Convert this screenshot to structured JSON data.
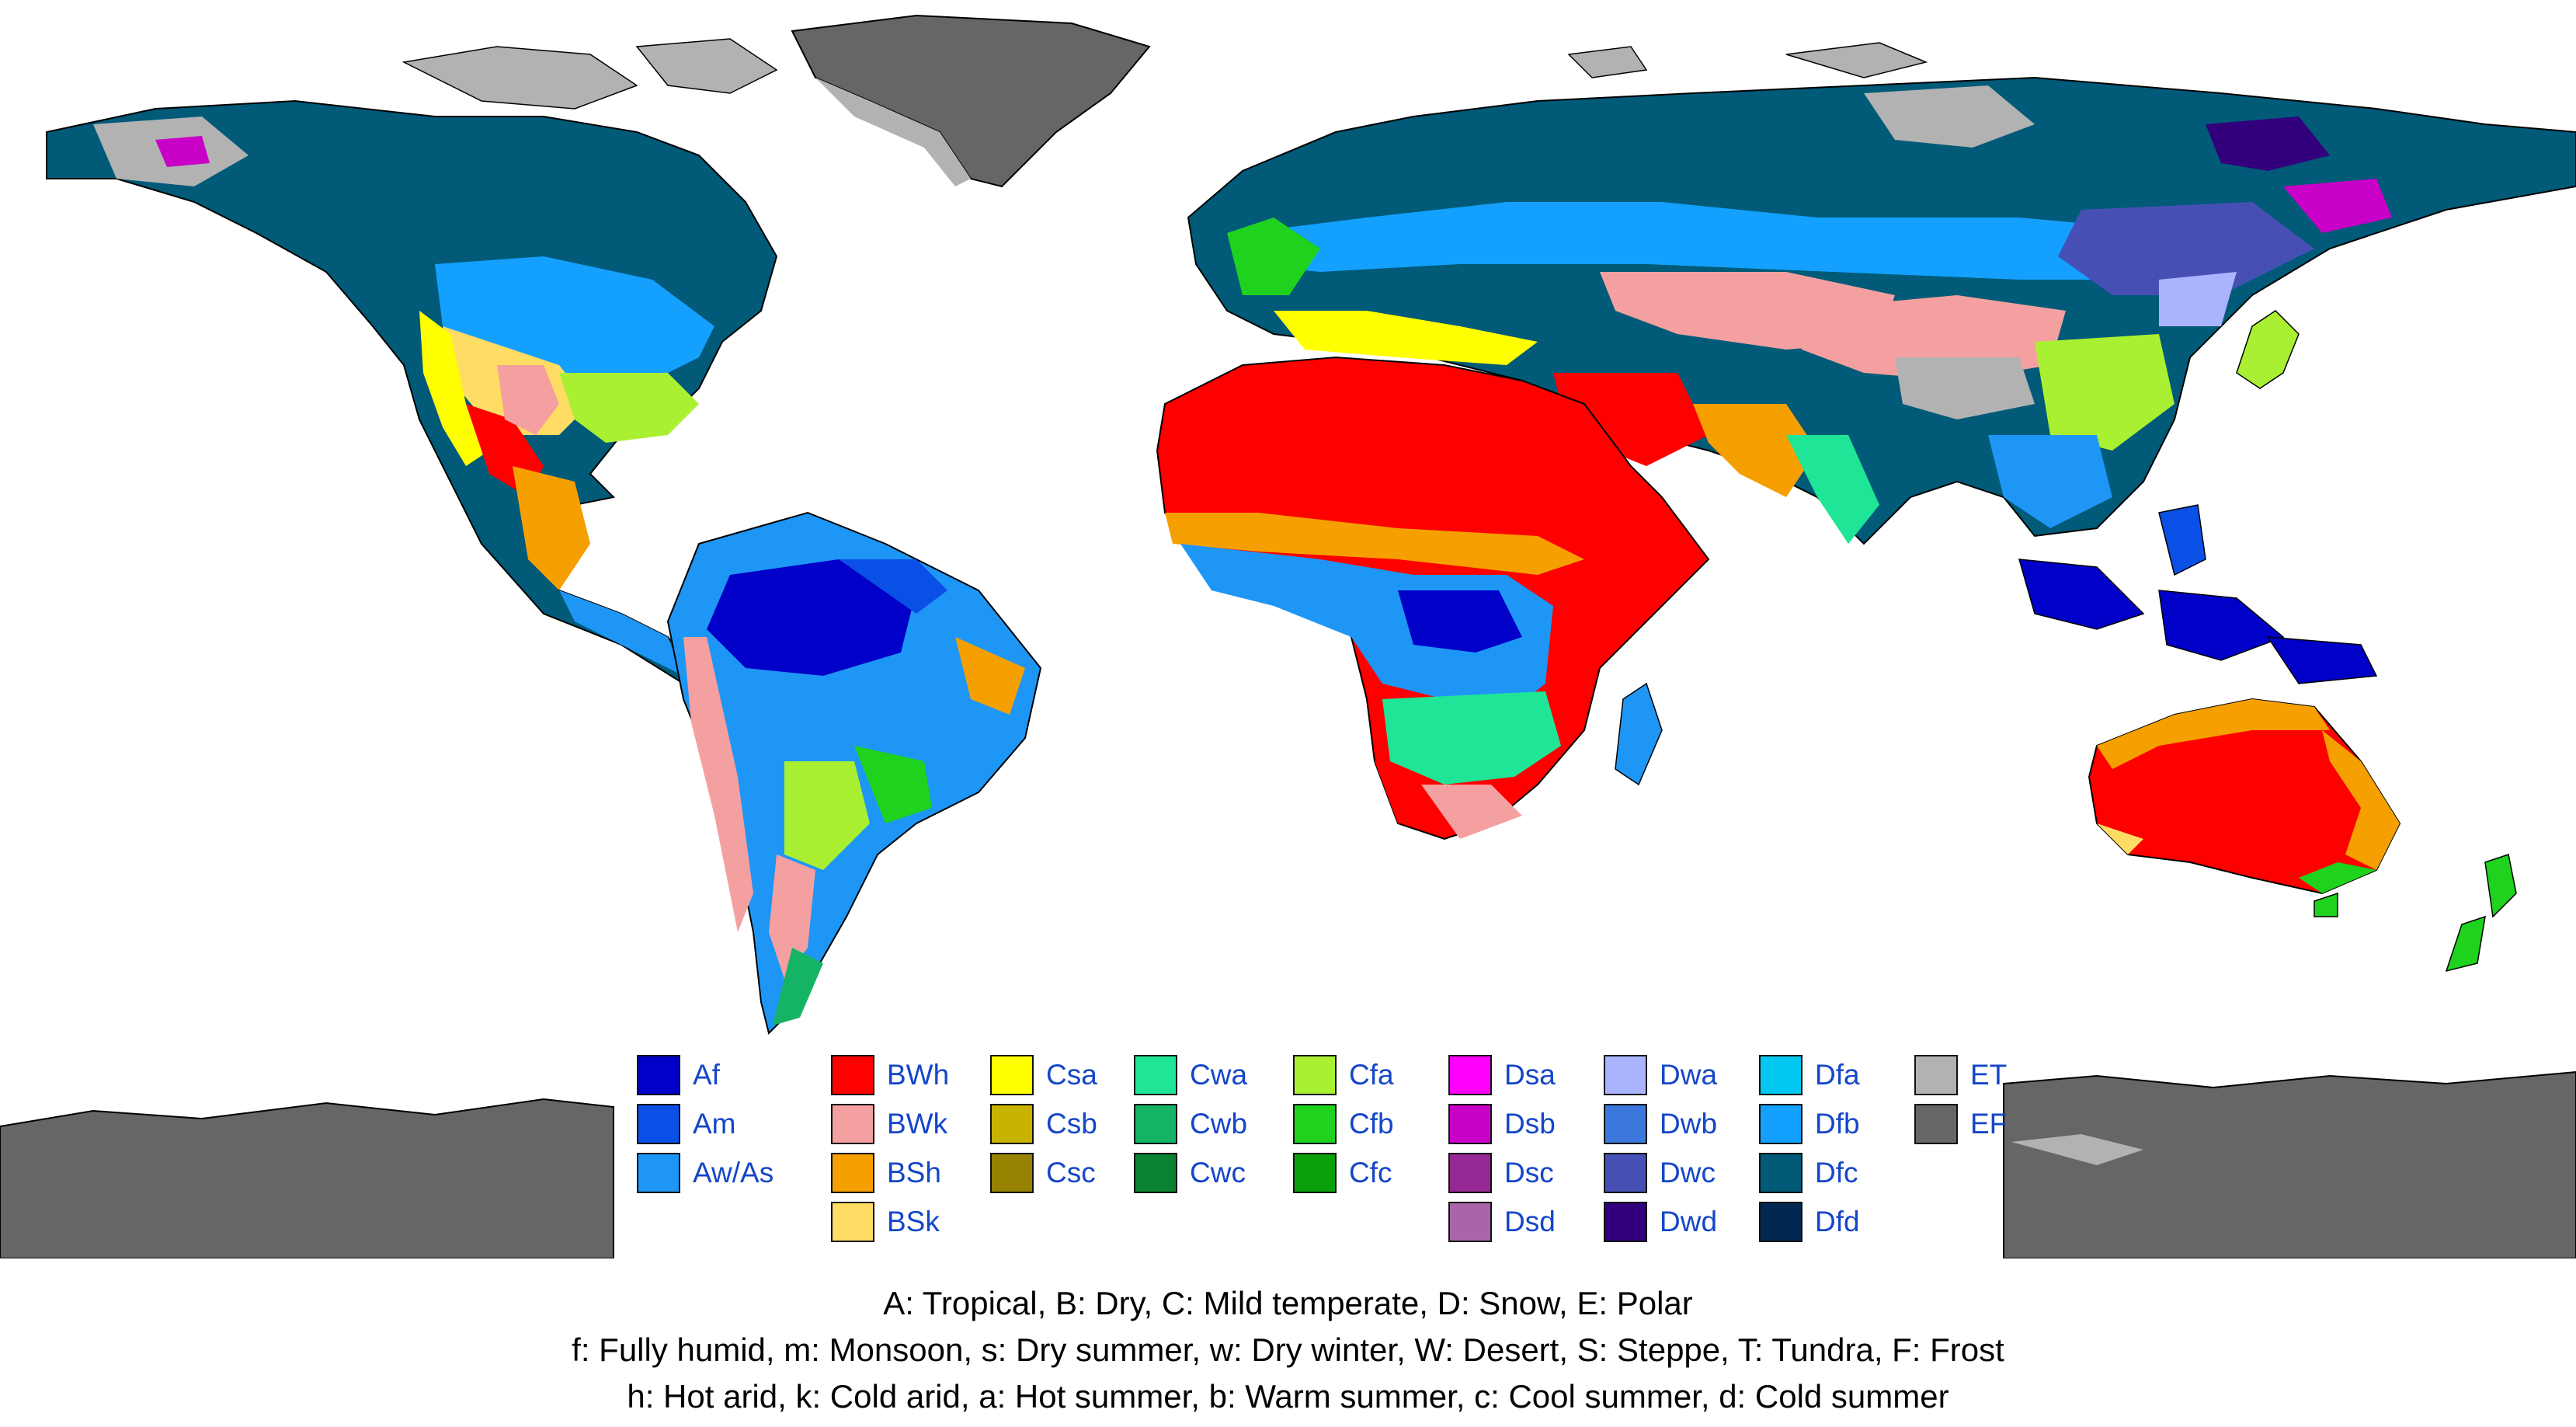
{
  "legend": {
    "columns": [
      [
        {
          "code": "Af",
          "color": "#0000c8"
        },
        {
          "code": "Am",
          "color": "#0a50e6"
        },
        {
          "code": "Aw/As",
          "color": "#1e96f5"
        }
      ],
      [
        {
          "code": "BWh",
          "color": "#ff0000"
        },
        {
          "code": "BWk",
          "color": "#f5a0a0"
        },
        {
          "code": "BSh",
          "color": "#f5a000"
        },
        {
          "code": "BSk",
          "color": "#ffdc64"
        }
      ],
      [
        {
          "code": "Csa",
          "color": "#ffff00"
        },
        {
          "code": "Csb",
          "color": "#c8b400"
        },
        {
          "code": "Csc",
          "color": "#968200"
        }
      ],
      [
        {
          "code": "Cwa",
          "color": "#1ee696"
        },
        {
          "code": "Cwb",
          "color": "#14b464"
        },
        {
          "code": "Cwc",
          "color": "#0a8232"
        }
      ],
      [
        {
          "code": "Cfa",
          "color": "#aaf032"
        },
        {
          "code": "Cfb",
          "color": "#1ed21e"
        },
        {
          "code": "Cfc",
          "color": "#0aa00a"
        }
      ],
      [
        {
          "code": "Dsa",
          "color": "#ff00ff"
        },
        {
          "code": "Dsb",
          "color": "#c800c8"
        },
        {
          "code": "Dsc",
          "color": "#962896"
        },
        {
          "code": "Dsd",
          "color": "#aa64aa"
        }
      ],
      [
        {
          "code": "Dwa",
          "color": "#aab4ff"
        },
        {
          "code": "Dwb",
          "color": "#3c78dc"
        },
        {
          "code": "Dwc",
          "color": "#4650b4"
        },
        {
          "code": "Dwd",
          "color": "#32007c"
        }
      ],
      [
        {
          "code": "Dfa",
          "color": "#00c8f0"
        },
        {
          "code": "Dfb",
          "color": "#14a0ff"
        },
        {
          "code": "Dfc",
          "color": "#005a78"
        },
        {
          "code": "Dfd",
          "color": "#002850"
        }
      ],
      [
        {
          "code": "ET",
          "color": "#b2b2b2"
        },
        {
          "code": "EF",
          "color": "#666666"
        }
      ]
    ]
  },
  "notes": {
    "line1": "A: Tropical, B: Dry, C: Mild temperate, D: Snow, E: Polar",
    "line2": "f: Fully humid, m: Monsoon, s: Dry summer, w: Dry winter, W: Desert, S: Steppe, T: Tundra, F: Frost",
    "line3": "h: Hot arid, k: Cold arid, a: Hot summer, b: Warm summer, c: Cool summer, d: Cold summer"
  },
  "map_colors": {
    "ocean": "#ffffff",
    "border": "#000000"
  }
}
